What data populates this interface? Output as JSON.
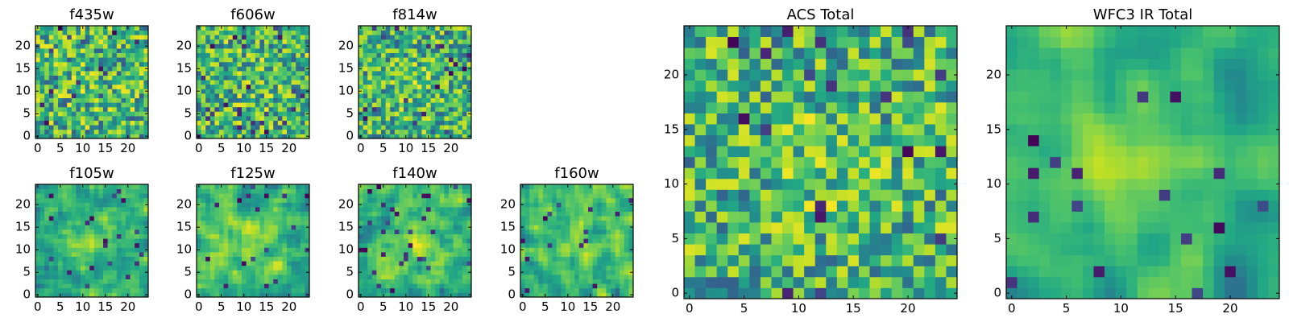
{
  "figure": {
    "colormap": "viridis",
    "image_size": 25
  },
  "chart_data": [
    {
      "type": "heatmap",
      "title": "f435w",
      "size": "small",
      "x_ticks": [
        0,
        5,
        10,
        15,
        20
      ],
      "y_ticks": [
        0,
        5,
        10,
        15,
        20
      ],
      "xlim": [
        0,
        24
      ],
      "ylim": [
        0,
        24
      ],
      "value_range": [
        0,
        1
      ],
      "seed": 11,
      "smooth": 0,
      "blob": 0.05
    },
    {
      "type": "heatmap",
      "title": "f606w",
      "size": "small",
      "x_ticks": [
        0,
        5,
        10,
        15,
        20
      ],
      "y_ticks": [
        0,
        5,
        10,
        15,
        20
      ],
      "xlim": [
        0,
        24
      ],
      "ylim": [
        0,
        24
      ],
      "value_range": [
        0,
        1
      ],
      "seed": 23,
      "smooth": 0,
      "blob": 0.08
    },
    {
      "type": "heatmap",
      "title": "f814w",
      "size": "small",
      "x_ticks": [
        0,
        5,
        10,
        15,
        20
      ],
      "y_ticks": [
        0,
        5,
        10,
        15,
        20
      ],
      "xlim": [
        0,
        24
      ],
      "ylim": [
        0,
        24
      ],
      "value_range": [
        0,
        1
      ],
      "seed": 37,
      "smooth": 0,
      "blob": 0.12
    },
    {
      "type": "heatmap",
      "title": "f105w",
      "size": "small",
      "x_ticks": [
        0,
        5,
        10,
        15,
        20
      ],
      "y_ticks": [
        0,
        5,
        10,
        15,
        20
      ],
      "xlim": [
        0,
        24
      ],
      "ylim": [
        0,
        24
      ],
      "value_range": [
        0,
        1
      ],
      "seed": 41,
      "smooth": 1,
      "blob": 0.3
    },
    {
      "type": "heatmap",
      "title": "f125w",
      "size": "small",
      "x_ticks": [
        0,
        5,
        10,
        15,
        20
      ],
      "y_ticks": [
        0,
        5,
        10,
        15,
        20
      ],
      "xlim": [
        0,
        24
      ],
      "ylim": [
        0,
        24
      ],
      "value_range": [
        0,
        1
      ],
      "seed": 53,
      "smooth": 1,
      "blob": 0.2
    },
    {
      "type": "heatmap",
      "title": "f140w",
      "size": "small",
      "x_ticks": [
        0,
        5,
        10,
        15,
        20
      ],
      "y_ticks": [
        0,
        5,
        10,
        15,
        20
      ],
      "xlim": [
        0,
        24
      ],
      "ylim": [
        0,
        24
      ],
      "value_range": [
        0,
        1
      ],
      "seed": 67,
      "smooth": 1,
      "blob": 0.25
    },
    {
      "type": "heatmap",
      "title": "f160w",
      "size": "small",
      "x_ticks": [
        0,
        5,
        10,
        15,
        20
      ],
      "y_ticks": [
        0,
        5,
        10,
        15,
        20
      ],
      "xlim": [
        0,
        24
      ],
      "ylim": [
        0,
        24
      ],
      "value_range": [
        0,
        1
      ],
      "seed": 79,
      "smooth": 1,
      "blob": 0.2
    },
    {
      "type": "heatmap",
      "title": "ACS Total",
      "size": "large",
      "x_ticks": [
        0,
        5,
        10,
        15,
        20
      ],
      "y_ticks": [
        0,
        5,
        10,
        15,
        20
      ],
      "xlim": [
        0,
        24
      ],
      "ylim": [
        0,
        24
      ],
      "value_range": [
        0,
        1
      ],
      "seed": 97,
      "smooth": 0,
      "blob": 0.12
    },
    {
      "type": "heatmap",
      "title": "WFC3 IR Total",
      "size": "large",
      "x_ticks": [
        0,
        5,
        10,
        15,
        20
      ],
      "y_ticks": [
        0,
        5,
        10,
        15,
        20
      ],
      "xlim": [
        0,
        24
      ],
      "ylim": [
        0,
        24
      ],
      "value_range": [
        0,
        1
      ],
      "seed": 131,
      "smooth": 2,
      "blob": 0.35
    }
  ]
}
